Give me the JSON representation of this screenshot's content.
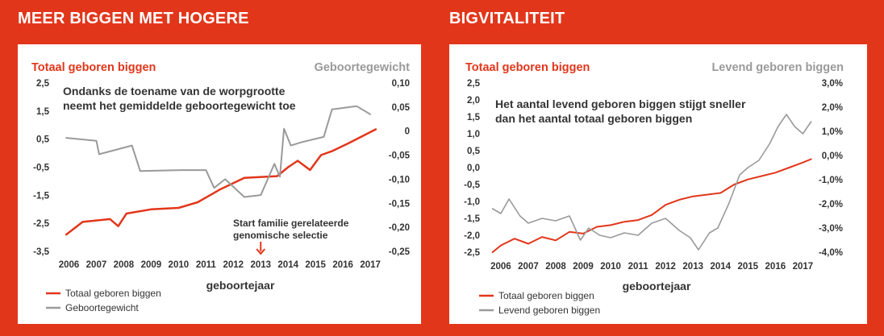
{
  "left": {
    "heading": "MEER BIGGEN MET HOGERE",
    "legend": [
      "Totaal geboren biggen",
      "Geboortegewicht"
    ],
    "chart_data": {
      "type": "line",
      "title": "",
      "subtitle": "Ondanks de toename van de worpgrootte neemt het gemiddelde geboortegewicht toe",
      "subtitle_lines": [
        "Ondanks de toename van de worpgrootte",
        "neemt het gemiddelde geboortegewicht toe"
      ],
      "xlabel": "geboortejaar",
      "ylabel_left": "Totaal geboren biggen",
      "ylabel_right": "Geboortegewicht",
      "x_ticks": [
        "2006",
        "2007",
        "2008",
        "2009",
        "2010",
        "2011",
        "2012",
        "2013",
        "2014",
        "2015",
        "2016",
        "2017"
      ],
      "xlim": [
        2005.75,
        2017.35
      ],
      "y_left_ticks": [
        "2,5",
        "1,5",
        "0,5",
        "-0,5",
        "-1,5",
        "-2,5",
        "-3,5"
      ],
      "y_left_range": [
        -3.5,
        2.5
      ],
      "y_right_ticks": [
        "0,10",
        "0,05",
        "0",
        "-0,05",
        "-0,10",
        "-0,15",
        "-0,20",
        "-0,25"
      ],
      "y_right_range": [
        -0.25,
        0.1
      ],
      "grid": false,
      "legend_position": "bottom-left",
      "annotation": {
        "lines": [
          "Start familie gerelateerde",
          "genomische selectie"
        ],
        "x": 2013.0
      },
      "series": [
        {
          "name": "Totaal geboren biggen",
          "axis": "left",
          "color": "#e2361b",
          "x": [
            2005.9,
            2006.5,
            2007.5,
            2007.8,
            2008.1,
            2009.0,
            2010.0,
            2010.7,
            2011.5,
            2012.4,
            2013.6,
            2014.0,
            2014.35,
            2014.8,
            2015.2,
            2015.6,
            2016.2,
            2017.2
          ],
          "y": [
            -2.9,
            -2.45,
            -2.35,
            -2.6,
            -2.15,
            -2.0,
            -1.95,
            -1.75,
            -1.3,
            -0.88,
            -0.82,
            -0.5,
            -0.27,
            -0.6,
            -0.07,
            0.07,
            0.35,
            0.85
          ]
        },
        {
          "name": "Geboortegewicht",
          "axis": "right",
          "color": "#9a9a9a",
          "x": [
            2005.9,
            2007.0,
            2007.1,
            2008.3,
            2008.6,
            2010.1,
            2011.0,
            2011.3,
            2011.7,
            2012.4,
            2013.0,
            2013.5,
            2013.7,
            2013.85,
            2014.1,
            2014.5,
            2015.3,
            2015.6,
            2016.5,
            2017.0
          ],
          "y": [
            -0.014,
            -0.02,
            -0.048,
            -0.03,
            -0.083,
            -0.081,
            -0.081,
            -0.118,
            -0.1,
            -0.137,
            -0.133,
            -0.068,
            -0.095,
            0.005,
            -0.03,
            -0.023,
            -0.012,
            0.045,
            0.052,
            0.035
          ]
        }
      ]
    }
  },
  "right": {
    "heading": "BIGVITALITEIT",
    "legend": [
      "Totaal geboren biggen",
      "Levend geboren biggen"
    ],
    "chart_data": {
      "type": "line",
      "title": "",
      "subtitle": "Het aantal levend geboren biggen stijgt sneller dan het aantal totaal geboren biggen",
      "subtitle_lines": [
        "Het aantal levend geboren biggen stijgt sneller",
        "dan het aantal totaal geboren biggen"
      ],
      "xlabel": "geboortejaar",
      "ylabel_left": "Totaal geboren biggen",
      "ylabel_right": "Levend geboren biggen",
      "x_ticks": [
        "2006",
        "2007",
        "2008",
        "2009",
        "2010",
        "2011",
        "2012",
        "2013",
        "2014",
        "2015",
        "2016",
        "2017"
      ],
      "xlim": [
        2005.65,
        2017.4
      ],
      "y_left_ticks": [
        "2,5",
        "2,0",
        "1,5",
        "1,0",
        "0,5",
        "0,0",
        "-0,5",
        "-1,0",
        "-1,5",
        "-2,0",
        "-2,5"
      ],
      "y_left_range": [
        -2.5,
        2.5
      ],
      "y_right_ticks": [
        "3,0%",
        "2,0%",
        "1,0%",
        "0,0%",
        "-1,0%",
        "-2,0%",
        "-3,0%",
        "-4,0%"
      ],
      "y_right_range": [
        -4.0,
        3.0
      ],
      "grid": false,
      "legend_position": "bottom-left",
      "series": [
        {
          "name": "Totaal geboren biggen",
          "axis": "left",
          "color": "#e2361b",
          "x": [
            2005.7,
            2006.0,
            2006.5,
            2007.0,
            2007.5,
            2008.0,
            2008.5,
            2009.0,
            2009.5,
            2010.0,
            2010.5,
            2011.0,
            2011.5,
            2012.0,
            2012.5,
            2013.0,
            2013.5,
            2014.0,
            2014.5,
            2015.0,
            2015.5,
            2016.0,
            2016.5,
            2017.0,
            2017.3
          ],
          "y": [
            -2.5,
            -2.3,
            -2.1,
            -2.25,
            -2.05,
            -2.15,
            -1.9,
            -1.95,
            -1.75,
            -1.7,
            -1.6,
            -1.55,
            -1.4,
            -1.1,
            -0.95,
            -0.85,
            -0.8,
            -0.75,
            -0.5,
            -0.35,
            -0.25,
            -0.15,
            0.0,
            0.15,
            0.25
          ]
        },
        {
          "name": "Levend geboren biggen",
          "axis": "right",
          "color": "#9a9a9a",
          "x": [
            2005.7,
            2006.0,
            2006.3,
            2006.7,
            2007.0,
            2007.5,
            2008.0,
            2008.5,
            2008.9,
            2009.2,
            2009.6,
            2010.0,
            2010.5,
            2011.0,
            2011.5,
            2012.0,
            2012.5,
            2012.9,
            2013.2,
            2013.6,
            2013.9,
            2014.3,
            2014.7,
            2015.0,
            2015.4,
            2015.8,
            2016.1,
            2016.4,
            2016.7,
            2017.0,
            2017.3
          ],
          "y": [
            -2.2,
            -2.4,
            -1.8,
            -2.5,
            -2.8,
            -2.6,
            -2.7,
            -2.5,
            -3.5,
            -3.0,
            -3.3,
            -3.4,
            -3.2,
            -3.3,
            -2.8,
            -2.6,
            -3.1,
            -3.4,
            -3.9,
            -3.2,
            -3.0,
            -2.0,
            -0.8,
            -0.5,
            -0.2,
            0.5,
            1.2,
            1.7,
            1.2,
            0.9,
            1.4
          ]
        }
      ]
    }
  }
}
